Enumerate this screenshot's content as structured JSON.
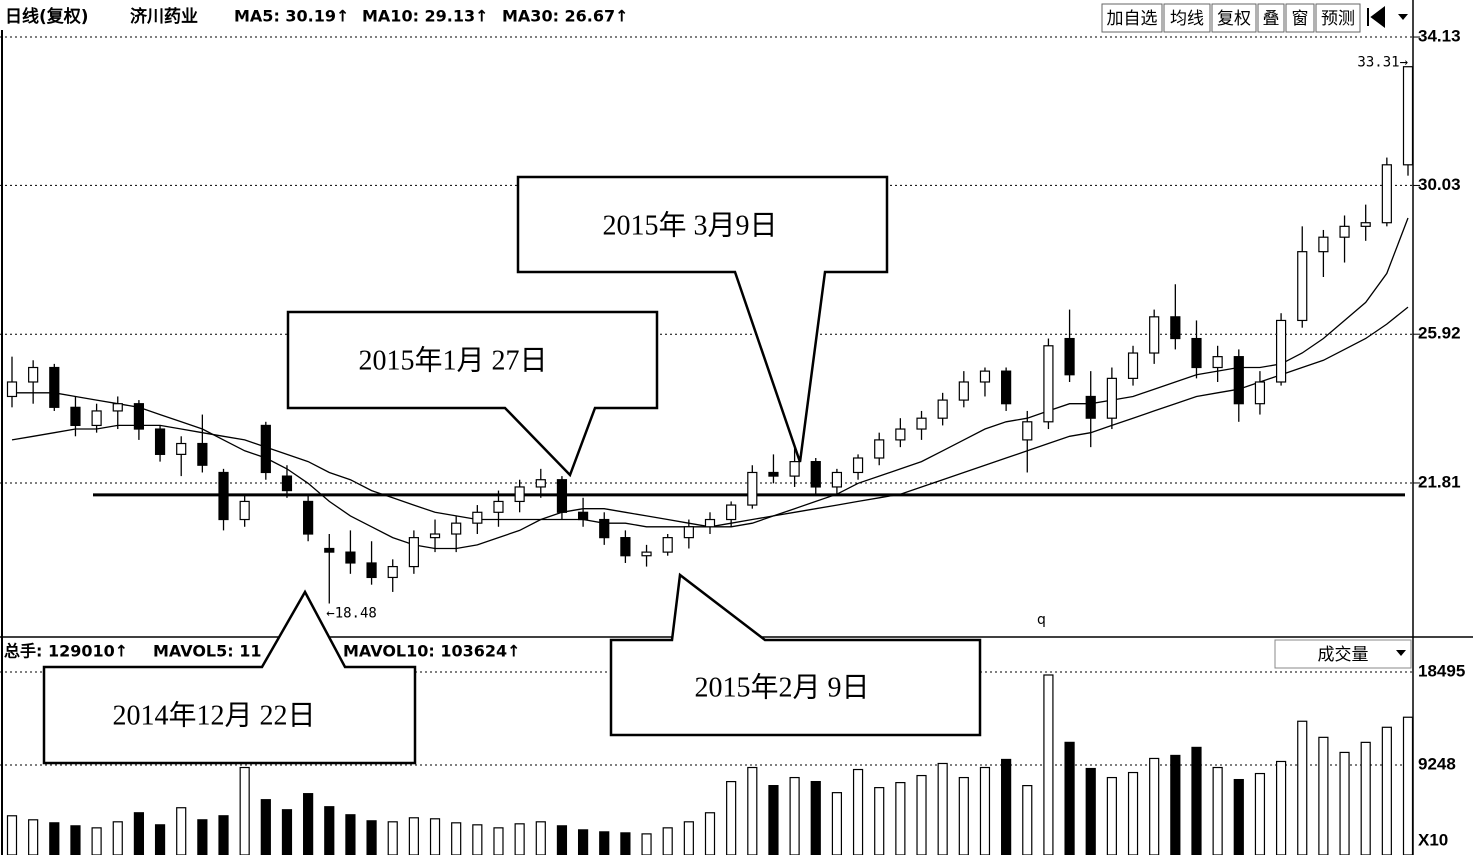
{
  "chart_data": [
    {
      "type": "candlestick",
      "title": "日线(复权)",
      "stock_name": "济川药业",
      "indicators": [
        "MA5: 30.19↑",
        "MA10: 29.13↑",
        "MA30: 26.67↑"
      ],
      "toolbar": [
        "加自选",
        "均线",
        "复权",
        "叠",
        "窗",
        "预测"
      ],
      "ylim": [
        17.61,
        34.49
      ],
      "yticks": [
        34.13,
        30.03,
        25.92,
        21.81
      ],
      "grid": true,
      "color_up": "#ffffff",
      "color_down": "#000000",
      "hlines": [
        21.48
      ],
      "high_mark": {
        "value": 33.31,
        "label": "33.31→"
      },
      "low_mark": {
        "value": 18.48,
        "label": "←18.48"
      },
      "stray_text": "q",
      "annotations": [
        "2015年1月 27日",
        "2015年 3月9日",
        "2014年12月 22日",
        "2015年2月 9日"
      ],
      "ohlc": [
        [
          24.2,
          25.3,
          23.9,
          24.6
        ],
        [
          24.6,
          25.2,
          24.0,
          25.0
        ],
        [
          25.0,
          25.1,
          23.8,
          23.9
        ],
        [
          23.9,
          24.2,
          23.1,
          23.4
        ],
        [
          23.4,
          24.0,
          23.2,
          23.8
        ],
        [
          23.8,
          24.2,
          23.3,
          24.0
        ],
        [
          24.0,
          24.1,
          23.0,
          23.3
        ],
        [
          23.3,
          23.4,
          22.4,
          22.6
        ],
        [
          22.6,
          23.1,
          22.0,
          22.9
        ],
        [
          22.9,
          23.7,
          22.1,
          22.3
        ],
        [
          22.1,
          22.2,
          20.5,
          20.8
        ],
        [
          20.8,
          21.5,
          20.6,
          21.3
        ],
        [
          23.4,
          23.5,
          21.9,
          22.1
        ],
        [
          22.0,
          22.3,
          21.4,
          21.6
        ],
        [
          21.3,
          21.5,
          20.2,
          20.4
        ],
        [
          20.0,
          20.4,
          18.48,
          19.9
        ],
        [
          19.9,
          20.5,
          19.3,
          19.6
        ],
        [
          19.6,
          20.2,
          19.0,
          19.2
        ],
        [
          19.2,
          19.7,
          18.8,
          19.5
        ],
        [
          19.5,
          20.5,
          19.3,
          20.3
        ],
        [
          20.3,
          20.8,
          19.9,
          20.4
        ],
        [
          20.4,
          20.9,
          19.9,
          20.7
        ],
        [
          20.7,
          21.2,
          20.4,
          21.0
        ],
        [
          21.0,
          21.6,
          20.6,
          21.3
        ],
        [
          21.3,
          21.9,
          21.0,
          21.7
        ],
        [
          21.7,
          22.2,
          21.4,
          21.9
        ],
        [
          21.9,
          22.0,
          20.8,
          21.0
        ],
        [
          21.0,
          21.4,
          20.6,
          20.8
        ],
        [
          20.8,
          21.0,
          20.1,
          20.3
        ],
        [
          20.3,
          20.5,
          19.6,
          19.8
        ],
        [
          19.8,
          20.1,
          19.5,
          19.9
        ],
        [
          19.9,
          20.4,
          19.8,
          20.3
        ],
        [
          20.3,
          20.8,
          20.0,
          20.6
        ],
        [
          20.6,
          21.0,
          20.4,
          20.8
        ],
        [
          20.8,
          21.3,
          20.6,
          21.2
        ],
        [
          21.2,
          22.3,
          21.1,
          22.1
        ],
        [
          22.1,
          22.6,
          21.8,
          22.0
        ],
        [
          22.0,
          22.8,
          21.7,
          22.4
        ],
        [
          22.4,
          22.5,
          21.5,
          21.7
        ],
        [
          21.7,
          22.2,
          21.5,
          22.1
        ],
        [
          22.1,
          22.6,
          21.9,
          22.5
        ],
        [
          22.5,
          23.2,
          22.3,
          23.0
        ],
        [
          23.0,
          23.6,
          22.8,
          23.3
        ],
        [
          23.3,
          23.8,
          23.0,
          23.6
        ],
        [
          23.6,
          24.3,
          23.4,
          24.1
        ],
        [
          24.1,
          24.9,
          23.9,
          24.6
        ],
        [
          24.6,
          25.0,
          24.2,
          24.9
        ],
        [
          24.9,
          25.0,
          23.8,
          24.0
        ],
        [
          23.0,
          23.8,
          22.1,
          23.5
        ],
        [
          23.5,
          25.8,
          23.3,
          25.6
        ],
        [
          25.8,
          26.6,
          24.6,
          24.8
        ],
        [
          24.2,
          24.9,
          22.8,
          23.6
        ],
        [
          23.6,
          25.0,
          23.3,
          24.7
        ],
        [
          24.7,
          25.6,
          24.5,
          25.4
        ],
        [
          25.4,
          26.6,
          25.1,
          26.4
        ],
        [
          26.4,
          27.3,
          25.5,
          25.8
        ],
        [
          25.8,
          26.3,
          24.7,
          25.0
        ],
        [
          25.0,
          25.6,
          24.6,
          25.3
        ],
        [
          25.3,
          25.5,
          23.5,
          24.0
        ],
        [
          24.0,
          24.9,
          23.7,
          24.6
        ],
        [
          24.6,
          26.5,
          24.5,
          26.3
        ],
        [
          26.3,
          28.9,
          26.1,
          28.2
        ],
        [
          28.2,
          28.8,
          27.5,
          28.6
        ],
        [
          28.6,
          29.2,
          27.9,
          28.9
        ],
        [
          28.9,
          29.5,
          28.5,
          29.0
        ],
        [
          29.0,
          30.8,
          28.9,
          30.6
        ],
        [
          30.6,
          33.31,
          30.3,
          33.31
        ]
      ],
      "series": [
        {
          "name": "MA10",
          "color": "#000000",
          "values": [
            24.3,
            24.3,
            24.3,
            24.2,
            24.1,
            24.0,
            23.9,
            23.7,
            23.5,
            23.3,
            23.0,
            22.7,
            22.5,
            22.2,
            21.8,
            21.3,
            20.9,
            20.6,
            20.3,
            20.1,
            20.0,
            20.0,
            20.1,
            20.3,
            20.5,
            20.8,
            21.0,
            21.1,
            21.1,
            21.0,
            20.9,
            20.8,
            20.7,
            20.6,
            20.6,
            20.7,
            20.9,
            21.1,
            21.3,
            21.5,
            21.8,
            22.0,
            22.2,
            22.4,
            22.7,
            23.0,
            23.3,
            23.5,
            23.6,
            23.8,
            24.0,
            24.0,
            24.1,
            24.2,
            24.4,
            24.6,
            24.8,
            24.9,
            25.0,
            25.0,
            25.1,
            25.4,
            25.8,
            26.3,
            26.8,
            27.6,
            29.13
          ]
        },
        {
          "name": "MA30",
          "color": "#000000",
          "values": [
            23.0,
            23.1,
            23.2,
            23.3,
            23.3,
            23.4,
            23.4,
            23.4,
            23.3,
            23.2,
            23.1,
            23.0,
            22.8,
            22.6,
            22.4,
            22.1,
            21.9,
            21.6,
            21.4,
            21.2,
            21.0,
            20.9,
            20.8,
            20.8,
            20.8,
            20.8,
            20.8,
            20.8,
            20.7,
            20.7,
            20.6,
            20.6,
            20.6,
            20.6,
            20.7,
            20.8,
            20.9,
            21.0,
            21.1,
            21.2,
            21.3,
            21.4,
            21.5,
            21.7,
            21.9,
            22.1,
            22.3,
            22.5,
            22.7,
            22.9,
            23.1,
            23.2,
            23.4,
            23.6,
            23.8,
            24.0,
            24.2,
            24.3,
            24.4,
            24.6,
            24.8,
            25.0,
            25.2,
            25.5,
            25.8,
            26.2,
            26.67
          ]
        }
      ]
    },
    {
      "type": "bar",
      "indicators": [
        "总手: 129010↑",
        "MAVOL5: 11",
        "MAVOL10: 103624↑"
      ],
      "selector": "成交量",
      "unit_label": "X10",
      "ylim": [
        300,
        21680
      ],
      "yticks": [
        18495,
        9248
      ],
      "grid": true,
      "values": [
        4200,
        3800,
        3500,
        3200,
        3000,
        3600,
        4500,
        3300,
        5000,
        3800,
        4200,
        9000,
        5800,
        4800,
        6400,
        5100,
        4300,
        3700,
        3600,
        4000,
        3900,
        3500,
        3300,
        3000,
        3400,
        3600,
        3200,
        2800,
        2600,
        2500,
        2400,
        3000,
        3600,
        4500,
        7600,
        9000,
        7200,
        8000,
        7600,
        6500,
        8800,
        7000,
        7500,
        8200,
        9400,
        8000,
        9000,
        9800,
        7200,
        18200,
        11500,
        8900,
        8000,
        8500,
        9900,
        10200,
        11000,
        9000,
        7800,
        8400,
        9600,
        13600,
        12000,
        10500,
        11500,
        13000,
        14000
      ]
    }
  ]
}
